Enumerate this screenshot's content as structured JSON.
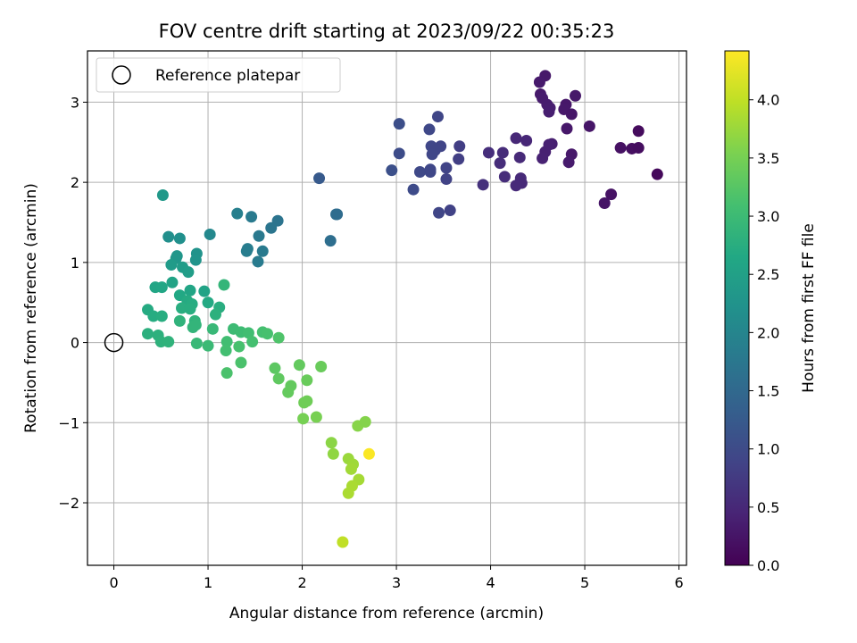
{
  "chart_data": {
    "type": "scatter",
    "title": "FOV centre drift starting at 2023/09/22 00:35:23",
    "xlabel": "Angular distance from reference (arcmin)",
    "ylabel": "Rotation from reference (arcmin)",
    "xlim": [
      -0.28,
      6.08
    ],
    "ylim": [
      -2.78,
      3.64
    ],
    "xticks": [
      0,
      1,
      2,
      3,
      4,
      5,
      6
    ],
    "yticks": [
      -2,
      -1,
      0,
      1,
      2,
      3
    ],
    "grid": true,
    "legend": {
      "placement": "top-left",
      "entries": [
        "Reference platepar"
      ]
    },
    "reference_point": {
      "x": 0,
      "y": 0
    },
    "colorbar": {
      "label": "Hours from first FF file",
      "colormap": "viridis",
      "min": 0.0,
      "max": 4.42,
      "ticks": [
        0.0,
        0.5,
        1.0,
        1.5,
        2.0,
        2.5,
        3.0,
        3.5,
        4.0
      ],
      "tick_labels": [
        "0.0",
        "0.5",
        "1.0",
        "1.5",
        "2.0",
        "2.5",
        "3.0",
        "3.5",
        "4.0"
      ]
    },
    "points": [
      {
        "x": 4.58,
        "y": 3.33,
        "c": 0.3
      },
      {
        "x": 4.52,
        "y": 3.25,
        "c": 0.32
      },
      {
        "x": 4.53,
        "y": 3.1,
        "c": 0.31
      },
      {
        "x": 4.55,
        "y": 3.05,
        "c": 0.34
      },
      {
        "x": 4.6,
        "y": 2.97,
        "c": 0.35
      },
      {
        "x": 4.63,
        "y": 2.93,
        "c": 0.36
      },
      {
        "x": 4.62,
        "y": 2.88,
        "c": 0.37
      },
      {
        "x": 4.9,
        "y": 3.08,
        "c": 0.3
      },
      {
        "x": 4.8,
        "y": 2.97,
        "c": 0.28
      },
      {
        "x": 4.78,
        "y": 2.91,
        "c": 0.29
      },
      {
        "x": 4.86,
        "y": 2.85,
        "c": 0.27
      },
      {
        "x": 4.81,
        "y": 2.67,
        "c": 0.29
      },
      {
        "x": 5.05,
        "y": 2.7,
        "c": 0.25
      },
      {
        "x": 4.65,
        "y": 2.48,
        "c": 0.38
      },
      {
        "x": 4.62,
        "y": 2.47,
        "c": 0.4
      },
      {
        "x": 4.58,
        "y": 2.38,
        "c": 0.4
      },
      {
        "x": 4.55,
        "y": 2.3,
        "c": 0.42
      },
      {
        "x": 4.86,
        "y": 2.35,
        "c": 0.3
      },
      {
        "x": 4.83,
        "y": 2.25,
        "c": 0.33
      },
      {
        "x": 5.38,
        "y": 2.43,
        "c": 0.2
      },
      {
        "x": 5.5,
        "y": 2.42,
        "c": 0.18
      },
      {
        "x": 5.57,
        "y": 2.43,
        "c": 0.15
      },
      {
        "x": 5.57,
        "y": 2.64,
        "c": 0.12
      },
      {
        "x": 5.77,
        "y": 2.1,
        "c": 0.1
      },
      {
        "x": 5.28,
        "y": 1.85,
        "c": 0.22
      },
      {
        "x": 5.21,
        "y": 1.74,
        "c": 0.24
      },
      {
        "x": 4.27,
        "y": 2.55,
        "c": 0.5
      },
      {
        "x": 4.38,
        "y": 2.52,
        "c": 0.48
      },
      {
        "x": 4.13,
        "y": 2.37,
        "c": 0.55
      },
      {
        "x": 3.98,
        "y": 2.37,
        "c": 0.58
      },
      {
        "x": 4.1,
        "y": 2.24,
        "c": 0.56
      },
      {
        "x": 4.31,
        "y": 2.31,
        "c": 0.52
      },
      {
        "x": 4.15,
        "y": 2.07,
        "c": 0.57
      },
      {
        "x": 4.32,
        "y": 2.05,
        "c": 0.52
      },
      {
        "x": 4.33,
        "y": 1.99,
        "c": 0.51
      },
      {
        "x": 4.27,
        "y": 1.96,
        "c": 0.53
      },
      {
        "x": 3.92,
        "y": 1.97,
        "c": 0.62
      },
      {
        "x": 3.03,
        "y": 2.73,
        "c": 1.05
      },
      {
        "x": 3.44,
        "y": 2.82,
        "c": 0.92
      },
      {
        "x": 3.35,
        "y": 2.66,
        "c": 0.95
      },
      {
        "x": 3.47,
        "y": 2.45,
        "c": 0.9
      },
      {
        "x": 3.37,
        "y": 2.45,
        "c": 0.93
      },
      {
        "x": 3.41,
        "y": 2.4,
        "c": 0.92
      },
      {
        "x": 3.38,
        "y": 2.35,
        "c": 0.93
      },
      {
        "x": 3.67,
        "y": 2.45,
        "c": 0.8
      },
      {
        "x": 3.66,
        "y": 2.29,
        "c": 0.82
      },
      {
        "x": 3.03,
        "y": 2.36,
        "c": 1.02
      },
      {
        "x": 2.95,
        "y": 2.15,
        "c": 1.08
      },
      {
        "x": 3.25,
        "y": 2.13,
        "c": 0.97
      },
      {
        "x": 3.36,
        "y": 2.13,
        "c": 0.94
      },
      {
        "x": 3.36,
        "y": 2.16,
        "c": 0.94
      },
      {
        "x": 3.53,
        "y": 2.18,
        "c": 0.88
      },
      {
        "x": 3.53,
        "y": 2.04,
        "c": 0.87
      },
      {
        "x": 3.18,
        "y": 1.91,
        "c": 1.0
      },
      {
        "x": 3.45,
        "y": 1.62,
        "c": 0.92
      },
      {
        "x": 3.57,
        "y": 1.65,
        "c": 0.86
      },
      {
        "x": 2.18,
        "y": 2.05,
        "c": 1.25
      },
      {
        "x": 2.36,
        "y": 1.6,
        "c": 1.55
      },
      {
        "x": 2.37,
        "y": 1.6,
        "c": 1.55
      },
      {
        "x": 2.3,
        "y": 1.27,
        "c": 1.6
      },
      {
        "x": 1.31,
        "y": 1.61,
        "c": 1.9
      },
      {
        "x": 1.46,
        "y": 1.57,
        "c": 1.8
      },
      {
        "x": 1.74,
        "y": 1.52,
        "c": 1.7
      },
      {
        "x": 1.67,
        "y": 1.43,
        "c": 1.72
      },
      {
        "x": 1.54,
        "y": 1.33,
        "c": 1.78
      },
      {
        "x": 1.42,
        "y": 1.17,
        "c": 1.85
      },
      {
        "x": 1.41,
        "y": 1.14,
        "c": 1.86
      },
      {
        "x": 1.58,
        "y": 1.14,
        "c": 1.8
      },
      {
        "x": 1.53,
        "y": 1.01,
        "c": 1.82
      },
      {
        "x": 0.52,
        "y": 1.84,
        "c": 2.35
      },
      {
        "x": 0.58,
        "y": 1.32,
        "c": 2.18
      },
      {
        "x": 0.7,
        "y": 1.3,
        "c": 2.2
      },
      {
        "x": 1.02,
        "y": 1.35,
        "c": 2.05
      },
      {
        "x": 0.67,
        "y": 1.08,
        "c": 2.3
      },
      {
        "x": 0.66,
        "y": 1.05,
        "c": 2.32
      },
      {
        "x": 0.88,
        "y": 1.11,
        "c": 2.25
      },
      {
        "x": 0.87,
        "y": 1.03,
        "c": 2.27
      },
      {
        "x": 0.61,
        "y": 0.97,
        "c": 2.4
      },
      {
        "x": 0.73,
        "y": 0.94,
        "c": 2.42
      },
      {
        "x": 0.79,
        "y": 0.88,
        "c": 2.45
      },
      {
        "x": 0.62,
        "y": 0.75,
        "c": 2.55
      },
      {
        "x": 0.44,
        "y": 0.69,
        "c": 2.6
      },
      {
        "x": 0.51,
        "y": 0.69,
        "c": 2.62
      },
      {
        "x": 0.7,
        "y": 0.59,
        "c": 2.65
      },
      {
        "x": 0.81,
        "y": 0.65,
        "c": 2.6
      },
      {
        "x": 0.96,
        "y": 0.64,
        "c": 2.55
      },
      {
        "x": 1.17,
        "y": 0.72,
        "c": 2.9
      },
      {
        "x": 0.78,
        "y": 0.52,
        "c": 2.7
      },
      {
        "x": 0.83,
        "y": 0.48,
        "c": 2.72
      },
      {
        "x": 1.0,
        "y": 0.5,
        "c": 2.68
      },
      {
        "x": 1.12,
        "y": 0.44,
        "c": 2.75
      },
      {
        "x": 0.72,
        "y": 0.43,
        "c": 2.75
      },
      {
        "x": 0.81,
        "y": 0.42,
        "c": 2.74
      },
      {
        "x": 1.08,
        "y": 0.35,
        "c": 2.8
      },
      {
        "x": 0.36,
        "y": 0.41,
        "c": 2.7
      },
      {
        "x": 0.42,
        "y": 0.33,
        "c": 2.72
      },
      {
        "x": 0.51,
        "y": 0.33,
        "c": 2.74
      },
      {
        "x": 0.86,
        "y": 0.27,
        "c": 2.85
      },
      {
        "x": 0.7,
        "y": 0.27,
        "c": 2.85
      },
      {
        "x": 0.87,
        "y": 0.22,
        "c": 2.88
      },
      {
        "x": 0.84,
        "y": 0.19,
        "c": 2.88
      },
      {
        "x": 1.05,
        "y": 0.17,
        "c": 2.95
      },
      {
        "x": 1.27,
        "y": 0.17,
        "c": 3.0
      },
      {
        "x": 1.35,
        "y": 0.13,
        "c": 3.02
      },
      {
        "x": 1.43,
        "y": 0.12,
        "c": 3.05
      },
      {
        "x": 1.58,
        "y": 0.13,
        "c": 3.1
      },
      {
        "x": 1.63,
        "y": 0.11,
        "c": 3.12
      },
      {
        "x": 1.75,
        "y": 0.06,
        "c": 3.18
      },
      {
        "x": 0.36,
        "y": 0.11,
        "c": 2.78
      },
      {
        "x": 0.47,
        "y": 0.09,
        "c": 2.8
      },
      {
        "x": 0.5,
        "y": 0.01,
        "c": 2.82
      },
      {
        "x": 0.58,
        "y": 0.01,
        "c": 2.84
      },
      {
        "x": 0.88,
        "y": -0.01,
        "c": 2.95
      },
      {
        "x": 1.0,
        "y": -0.04,
        "c": 2.98
      },
      {
        "x": 1.2,
        "y": 0.01,
        "c": 3.05
      },
      {
        "x": 1.19,
        "y": -0.1,
        "c": 3.08
      },
      {
        "x": 1.47,
        "y": 0.01,
        "c": 3.1
      },
      {
        "x": 1.33,
        "y": -0.05,
        "c": 3.12
      },
      {
        "x": 1.2,
        "y": -0.38,
        "c": 3.15
      },
      {
        "x": 1.35,
        "y": -0.25,
        "c": 3.15
      },
      {
        "x": 1.71,
        "y": -0.32,
        "c": 3.3
      },
      {
        "x": 1.97,
        "y": -0.28,
        "c": 3.35
      },
      {
        "x": 2.2,
        "y": -0.3,
        "c": 3.4
      },
      {
        "x": 1.75,
        "y": -0.45,
        "c": 3.32
      },
      {
        "x": 1.88,
        "y": -0.54,
        "c": 3.35
      },
      {
        "x": 1.85,
        "y": -0.62,
        "c": 3.36
      },
      {
        "x": 2.05,
        "y": -0.47,
        "c": 3.4
      },
      {
        "x": 2.05,
        "y": -0.73,
        "c": 3.45
      },
      {
        "x": 2.02,
        "y": -0.75,
        "c": 3.45
      },
      {
        "x": 2.01,
        "y": -0.95,
        "c": 3.5
      },
      {
        "x": 2.15,
        "y": -0.93,
        "c": 3.52
      },
      {
        "x": 2.59,
        "y": -1.04,
        "c": 3.62
      },
      {
        "x": 2.67,
        "y": -0.99,
        "c": 3.6
      },
      {
        "x": 2.31,
        "y": -1.25,
        "c": 3.65
      },
      {
        "x": 2.33,
        "y": -1.39,
        "c": 3.68
      },
      {
        "x": 2.49,
        "y": -1.45,
        "c": 3.75
      },
      {
        "x": 2.54,
        "y": -1.52,
        "c": 3.78
      },
      {
        "x": 2.52,
        "y": -1.58,
        "c": 3.8
      },
      {
        "x": 2.6,
        "y": -1.71,
        "c": 3.82
      },
      {
        "x": 2.53,
        "y": -1.79,
        "c": 3.85
      },
      {
        "x": 2.49,
        "y": -1.88,
        "c": 3.86
      },
      {
        "x": 2.43,
        "y": -2.49,
        "c": 4.0
      },
      {
        "x": 2.71,
        "y": -1.39,
        "c": 4.4
      }
    ]
  }
}
